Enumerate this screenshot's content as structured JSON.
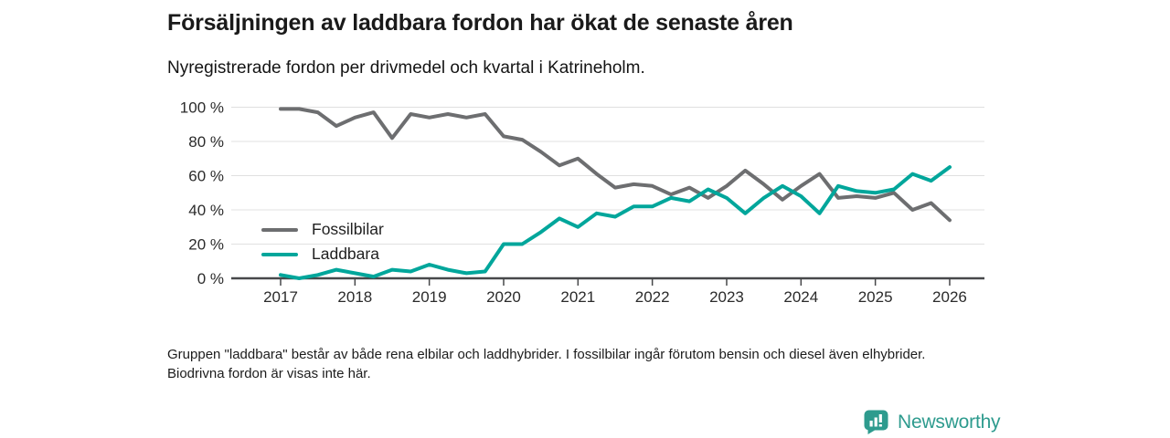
{
  "header": {
    "title": "Försäljningen av laddbara fordon har ökat de senaste åren",
    "subtitle": "Nyregistrerade fordon per drivmedel och kvartal i Katrineholm."
  },
  "chart_data": {
    "type": "line",
    "title": "Försäljningen av laddbara fordon har ökat de senaste åren",
    "subtitle": "Nyregistrerade fordon per drivmedel och kvartal i Katrineholm.",
    "x_unit": "quarter",
    "x_range": [
      "2017 Q1",
      "2026 Q1"
    ],
    "points_per_year": 4,
    "categories": [
      "2017",
      "2018",
      "2019",
      "2020",
      "2021",
      "2022",
      "2023",
      "2024",
      "2025",
      "2026"
    ],
    "ylim": [
      0,
      100
    ],
    "yticks": [
      0,
      20,
      40,
      60,
      80,
      100
    ],
    "ytick_format": "{v} %",
    "grid": "horizontal",
    "legend_position": "inside-left",
    "series": [
      {
        "name": "Fossilbilar",
        "color": "#6d6e70",
        "values": [
          99,
          99,
          97,
          89,
          94,
          97,
          82,
          96,
          94,
          96,
          94,
          96,
          83,
          81,
          74,
          66,
          70,
          61,
          53,
          55,
          54,
          49,
          53,
          47,
          54,
          63,
          55,
          46,
          54,
          61,
          47,
          48,
          47,
          50,
          40,
          44,
          34
        ]
      },
      {
        "name": "Laddbara",
        "color": "#00a69b",
        "values": [
          2,
          0,
          2,
          5,
          3,
          1,
          5,
          4,
          8,
          5,
          3,
          4,
          20,
          20,
          27,
          35,
          30,
          38,
          36,
          42,
          42,
          47,
          45,
          52,
          47,
          38,
          47,
          54,
          48,
          38,
          54,
          51,
          50,
          52,
          61,
          57,
          65
        ]
      }
    ]
  },
  "footnote": {
    "text": "Gruppen \"laddbara\" består av både rena elbilar och laddhybrider. I fossilbilar ingår förutom bensin och diesel även elhybrider. Biodrivna fordon är visas inte här."
  },
  "logo": {
    "text": "Newsworthy",
    "color": "#2e9b8e",
    "icon": "newsworthy-pin-bar-chart"
  }
}
